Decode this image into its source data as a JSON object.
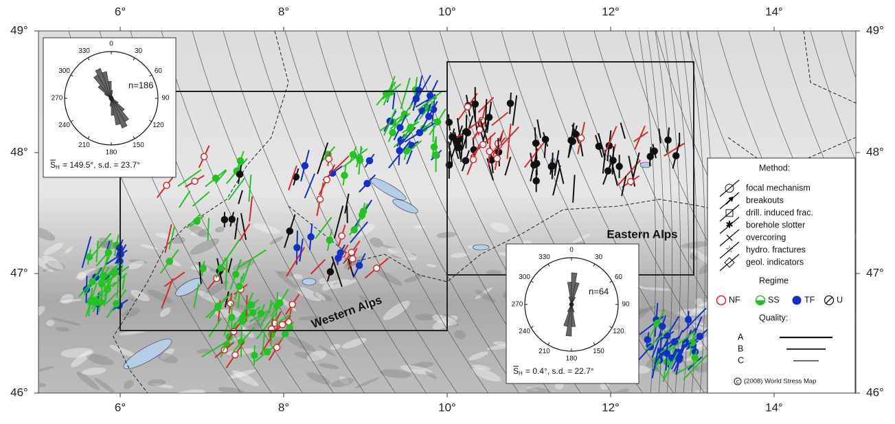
{
  "axes": {
    "top": [
      "6°",
      "8°",
      "10°",
      "12°",
      "14°"
    ],
    "bottom": [
      "6°",
      "8°",
      "10°",
      "12°",
      "14°"
    ],
    "left": [
      "49°",
      "48°",
      "47°",
      "46°"
    ],
    "right": [
      "49°",
      "48°",
      "47°",
      "46°"
    ]
  },
  "regions": {
    "west": "Western Alps",
    "east": "Eastern Alps"
  },
  "rose_west": {
    "directions": [
      "0",
      "30",
      "60",
      "90",
      "120",
      "150",
      "180",
      "210",
      "240",
      "270",
      "300",
      "330"
    ],
    "count": "n=186",
    "stat_symbol": "S",
    "stat_subscript": "H",
    "stat_text": "= 149.5°, s.d. = 23.7°"
  },
  "rose_east": {
    "directions": [
      "0",
      "30",
      "60",
      "90",
      "120",
      "150",
      "180",
      "210",
      "240",
      "270",
      "300",
      "330"
    ],
    "count": "n=64",
    "stat_symbol": "S",
    "stat_subscript": "H",
    "stat_text": "= 0.4°, s.d. = 22.7°"
  },
  "legend": {
    "method_title": "Method:",
    "methods": [
      "focal mechanism",
      "breakouts",
      "drill. induced frac.",
      "borehole slotter",
      "overcoring",
      "hydro. fractures",
      "geol. indicators"
    ],
    "regime_title": "Regime",
    "regimes": [
      "NF",
      "SS",
      "TF",
      "U"
    ],
    "quality_title": "Quality:",
    "qualities": [
      "A",
      "B",
      "C"
    ],
    "copyright": "(2008) World Stress Map"
  }
}
